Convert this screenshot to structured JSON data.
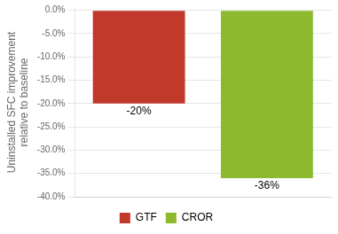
{
  "chart_data": {
    "type": "bar",
    "categories": [
      "GTF",
      "CROR"
    ],
    "values": [
      -20,
      -36
    ],
    "value_labels": [
      "-20%",
      "-36%"
    ],
    "data_labels": true,
    "colors": [
      "#c0392b",
      "#8db92e"
    ],
    "ylabel": "Uninstalled SFC improvement\nrelative to baseline",
    "ylim": [
      -40,
      0.5
    ],
    "yticks": [
      {
        "value": 0,
        "label": "0.0%"
      },
      {
        "value": -5,
        "label": "-5.0%"
      },
      {
        "value": -10,
        "label": "-10.0%"
      },
      {
        "value": -15,
        "label": "-15.0%"
      },
      {
        "value": -20,
        "label": "-20.0%"
      },
      {
        "value": -25,
        "label": "-25.0%"
      },
      {
        "value": -30,
        "label": "-30.0%"
      },
      {
        "value": -35,
        "label": "-35.0%"
      },
      {
        "value": -40,
        "label": "-40.0%"
      }
    ],
    "grid": true,
    "legend": "bottom",
    "tick_labels": "y"
  }
}
